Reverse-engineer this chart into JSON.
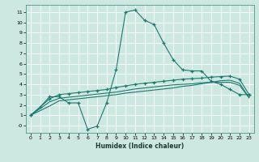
{
  "xlabel": "Humidex (Indice chaleur)",
  "background_color": "#cce8e0",
  "grid_color": "#ffffff",
  "line_color": "#1a7a6e",
  "xlim": [
    -0.5,
    23.5
  ],
  "ylim": [
    -0.7,
    11.7
  ],
  "xticks": [
    0,
    1,
    2,
    3,
    4,
    5,
    6,
    7,
    8,
    9,
    10,
    11,
    12,
    13,
    14,
    15,
    16,
    17,
    18,
    19,
    20,
    21,
    22,
    23
  ],
  "yticks": [
    0,
    1,
    2,
    3,
    4,
    5,
    6,
    7,
    8,
    9,
    10,
    11
  ],
  "ytick_labels": [
    "-0",
    "1",
    "2",
    "3",
    "4",
    "5",
    "6",
    "7",
    "8",
    "9",
    "10",
    "11"
  ],
  "line1_x": [
    0,
    1,
    2,
    3,
    4,
    5,
    6,
    7,
    8,
    9,
    10,
    11,
    12,
    13,
    14,
    15,
    16,
    17,
    18,
    19,
    20,
    21,
    22,
    23
  ],
  "line1_y": [
    1.0,
    1.8,
    2.8,
    2.8,
    2.2,
    2.2,
    -0.35,
    -0.05,
    2.2,
    5.4,
    11.0,
    11.2,
    10.2,
    9.8,
    8.0,
    6.4,
    5.4,
    5.3,
    5.3,
    4.3,
    4.0,
    3.5,
    3.0,
    3.0
  ],
  "line2_x": [
    0,
    2,
    3,
    4,
    5,
    6,
    7,
    8,
    9,
    10,
    11,
    12,
    13,
    14,
    15,
    16,
    17,
    18,
    19,
    20,
    21,
    22,
    23
  ],
  "line2_y": [
    1.0,
    2.6,
    3.0,
    3.1,
    3.2,
    3.3,
    3.4,
    3.5,
    3.7,
    3.85,
    4.0,
    4.1,
    4.2,
    4.3,
    4.4,
    4.5,
    4.55,
    4.6,
    4.7,
    4.75,
    4.8,
    4.5,
    3.0
  ],
  "line3_x": [
    0,
    2,
    3,
    4,
    5,
    6,
    7,
    8,
    9,
    10,
    11,
    12,
    13,
    14,
    15,
    16,
    17,
    18,
    19,
    20,
    21,
    22,
    23
  ],
  "line3_y": [
    1.0,
    2.3,
    2.65,
    2.75,
    2.85,
    2.95,
    3.05,
    3.15,
    3.25,
    3.4,
    3.55,
    3.65,
    3.75,
    3.85,
    3.95,
    4.0,
    4.05,
    4.15,
    4.2,
    4.2,
    4.2,
    3.9,
    2.7
  ],
  "line4_x": [
    0,
    2,
    3,
    4,
    5,
    6,
    7,
    8,
    9,
    10,
    11,
    12,
    13,
    14,
    15,
    16,
    17,
    18,
    19,
    20,
    21,
    22,
    23
  ],
  "line4_y": [
    1.0,
    1.9,
    2.4,
    2.5,
    2.6,
    2.7,
    2.8,
    2.9,
    3.0,
    3.15,
    3.25,
    3.35,
    3.45,
    3.55,
    3.65,
    3.8,
    3.9,
    4.05,
    4.2,
    4.35,
    4.4,
    4.1,
    2.7
  ]
}
